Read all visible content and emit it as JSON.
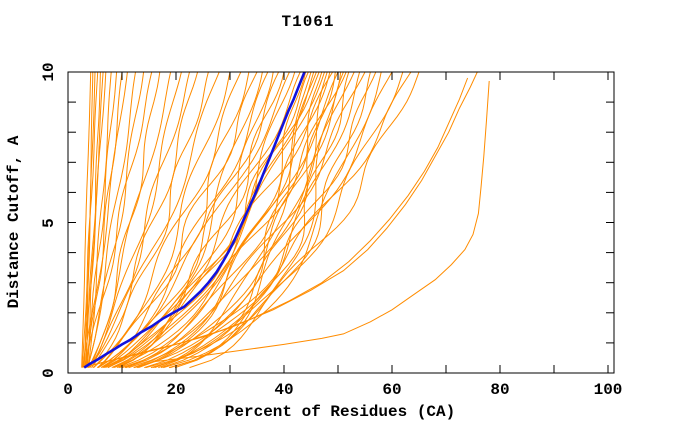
{
  "chart_data": {
    "type": "line",
    "title": "T1061",
    "xlabel": "Percent of Residues (CA)",
    "ylabel": "Distance Cutoff, A",
    "xlim": [
      0,
      101
    ],
    "ylim": [
      0,
      10
    ],
    "grid": false,
    "legend": "none",
    "x_minor_ticks": [
      10,
      20,
      30,
      40,
      50,
      60,
      70,
      80,
      90,
      100
    ],
    "y_minor_ticks": [
      1,
      2,
      3,
      4,
      5,
      6,
      7,
      8,
      9
    ],
    "x_tick_labels": [
      {
        "value": 0,
        "label": "0"
      },
      {
        "value": 20,
        "label": "20"
      },
      {
        "value": 40,
        "label": "40"
      },
      {
        "value": 60,
        "label": "60"
      },
      {
        "value": 80,
        "label": "80"
      },
      {
        "value": 100,
        "label": "100"
      }
    ],
    "y_tick_labels": [
      {
        "value": 0,
        "label": "0"
      },
      {
        "value": 5,
        "label": "5"
      },
      {
        "value": 10,
        "label": "10"
      }
    ],
    "colors": {
      "model_lines": "#FF8C00",
      "highlight_line": "#1212DD",
      "axis": "#000000",
      "text": "#000000",
      "background": "#FFFFFF"
    },
    "highlight_series": {
      "name": "highlighted-model",
      "points": [
        [
          3,
          0.18
        ],
        [
          4,
          0.3
        ],
        [
          5.5,
          0.45
        ],
        [
          7,
          0.62
        ],
        [
          8.5,
          0.78
        ],
        [
          10,
          0.95
        ],
        [
          11.5,
          1.1
        ],
        [
          13.5,
          1.35
        ],
        [
          15.5,
          1.55
        ],
        [
          17.5,
          1.8
        ],
        [
          19.5,
          2.0
        ],
        [
          21.5,
          2.2
        ],
        [
          23,
          2.45
        ],
        [
          24.5,
          2.7
        ],
        [
          26,
          3.0
        ],
        [
          27.5,
          3.35
        ],
        [
          28.7,
          3.7
        ],
        [
          29.8,
          4.05
        ],
        [
          30.8,
          4.4
        ],
        [
          31.8,
          4.8
        ],
        [
          32.8,
          5.2
        ],
        [
          33.8,
          5.6
        ],
        [
          34.8,
          6.0
        ],
        [
          35.8,
          6.45
        ],
        [
          36.8,
          6.9
        ],
        [
          37.8,
          7.35
        ],
        [
          38.8,
          7.8
        ],
        [
          39.8,
          8.25
        ],
        [
          40.8,
          8.7
        ],
        [
          41.8,
          9.1
        ],
        [
          42.8,
          9.55
        ],
        [
          43.8,
          10
        ]
      ]
    },
    "fan_series_format": [
      "percent_at_cutoff_10",
      "shape_exponent"
    ],
    "fan_series": [
      [
        4.2,
        1.0
      ],
      [
        4.6,
        0.95
      ],
      [
        5,
        0.9
      ],
      [
        5.5,
        1.0
      ],
      [
        6,
        0.85
      ],
      [
        6.5,
        0.95
      ],
      [
        7,
        0.9
      ],
      [
        8,
        0.85
      ],
      [
        9,
        0.95
      ],
      [
        10,
        0.8
      ],
      [
        11,
        0.9
      ],
      [
        12.5,
        0.85
      ],
      [
        14,
        0.8
      ],
      [
        15.5,
        0.9
      ],
      [
        17,
        0.75
      ],
      [
        19,
        0.8
      ],
      [
        21,
        0.7
      ],
      [
        22.5,
        0.78
      ],
      [
        24,
        0.72
      ],
      [
        26,
        0.65
      ],
      [
        28,
        0.75
      ],
      [
        30,
        0.62
      ],
      [
        32,
        0.7
      ],
      [
        33.5,
        0.55
      ],
      [
        35,
        0.68
      ],
      [
        36,
        0.5
      ],
      [
        37,
        0.62
      ],
      [
        38,
        0.45
      ],
      [
        39,
        0.6
      ],
      [
        40,
        0.52
      ],
      [
        41,
        0.65
      ],
      [
        42,
        0.48
      ],
      [
        43,
        0.6
      ],
      [
        44,
        0.35
      ],
      [
        44.5,
        0.55
      ],
      [
        45,
        0.28
      ],
      [
        45.5,
        0.5
      ],
      [
        46,
        0.4
      ],
      [
        46.5,
        0.62
      ],
      [
        47,
        0.3
      ],
      [
        47.5,
        0.55
      ],
      [
        48,
        0.25
      ],
      [
        48.5,
        0.45
      ],
      [
        49,
        0.6
      ],
      [
        49.5,
        0.3
      ],
      [
        50,
        0.5
      ],
      [
        50.5,
        0.22
      ],
      [
        51,
        0.4
      ],
      [
        51.5,
        0.55
      ],
      [
        52,
        0.28
      ],
      [
        53,
        0.45
      ],
      [
        54,
        0.35
      ],
      [
        55,
        0.5
      ],
      [
        56,
        0.3
      ],
      [
        57,
        0.4
      ],
      [
        58,
        0.33
      ],
      [
        60,
        0.45
      ],
      [
        62,
        0.4
      ],
      [
        63.5,
        0.5
      ],
      [
        65,
        0.42
      ]
    ],
    "outlier_series": [
      {
        "name": "outlier-curve-a",
        "points": [
          [
            3,
            0.2
          ],
          [
            10,
            0.5
          ],
          [
            18,
            0.85
          ],
          [
            26,
            1.25
          ],
          [
            34,
            1.8
          ],
          [
            41,
            2.4
          ],
          [
            47,
            3.0
          ],
          [
            52,
            3.7
          ],
          [
            56,
            4.4
          ],
          [
            59.5,
            5.1
          ],
          [
            63,
            5.9
          ],
          [
            66,
            6.7
          ],
          [
            68.5,
            7.5
          ],
          [
            70.5,
            8.3
          ],
          [
            72.5,
            9.1
          ],
          [
            74,
            9.8
          ]
        ]
      },
      {
        "name": "outlier-curve-b",
        "points": [
          [
            3,
            0.2
          ],
          [
            12,
            0.6
          ],
          [
            21,
            1.0
          ],
          [
            30,
            1.5
          ],
          [
            38,
            2.1
          ],
          [
            45,
            2.75
          ],
          [
            51,
            3.4
          ],
          [
            55.5,
            4.1
          ],
          [
            59,
            4.8
          ],
          [
            62.5,
            5.6
          ],
          [
            65.5,
            6.4
          ],
          [
            68,
            7.2
          ],
          [
            70.5,
            8.0
          ],
          [
            72.5,
            8.8
          ],
          [
            74.5,
            9.5
          ],
          [
            75.8,
            10
          ]
        ]
      },
      {
        "name": "outlier-curve-flat",
        "points": [
          [
            16,
            0.38
          ],
          [
            24,
            0.55
          ],
          [
            32,
            0.75
          ],
          [
            40,
            0.95
          ],
          [
            47,
            1.15
          ],
          [
            51,
            1.3
          ],
          [
            56,
            1.7
          ],
          [
            60,
            2.1
          ],
          [
            64,
            2.6
          ],
          [
            68,
            3.1
          ],
          [
            71,
            3.6
          ],
          [
            73.5,
            4.1
          ],
          [
            75,
            4.6
          ],
          [
            76,
            5.3
          ],
          [
            76.5,
            6.2
          ],
          [
            77,
            7.2
          ],
          [
            77.5,
            8.4
          ],
          [
            78,
            9.7
          ]
        ]
      }
    ]
  }
}
